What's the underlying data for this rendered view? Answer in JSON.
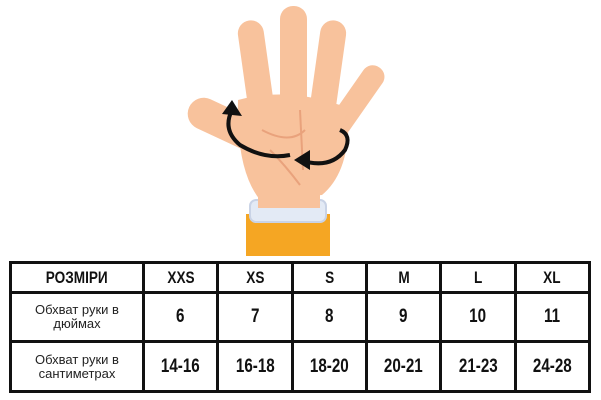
{
  "colors": {
    "skin": "#F8C29C",
    "skin_shadow": "#E9A27C",
    "sleeve": "#F5A623",
    "cuff": "#E3EAF5",
    "arrow": "#111111",
    "border": "#111111"
  },
  "illustration": {
    "subject": "hand-with-circumference-arrow-icon"
  },
  "table": {
    "header": {
      "label": "РОЗМІРИ",
      "sizes": [
        "XXS",
        "XS",
        "S",
        "M",
        "L",
        "XL"
      ]
    },
    "rows": [
      {
        "label": "Обхват руки в дюймах",
        "values": [
          "6",
          "7",
          "8",
          "9",
          "10",
          "11"
        ]
      },
      {
        "label": "Обхват руки в сантиметрах",
        "values": [
          "14-16",
          "16-18",
          "18-20",
          "20-21",
          "21-23",
          "24-28"
        ]
      }
    ]
  }
}
